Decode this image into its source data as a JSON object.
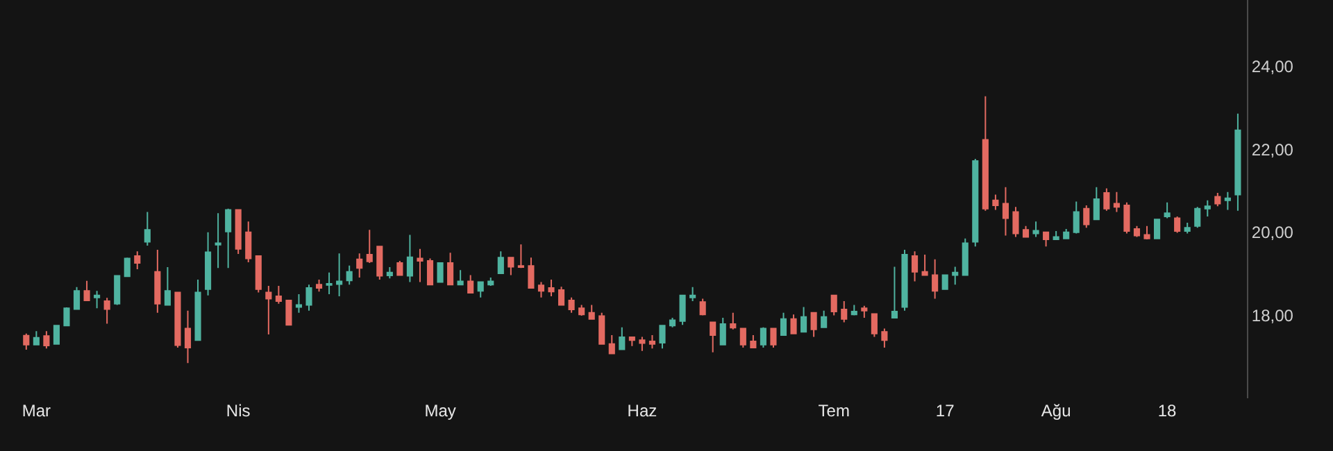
{
  "chart_data": {
    "type": "candlestick",
    "categories": [
      null,
      "Mar",
      null,
      null,
      null,
      null,
      null,
      null,
      null,
      null,
      null,
      null,
      null,
      null,
      null,
      null,
      null,
      null,
      null,
      null,
      null,
      "Nis",
      null,
      null,
      null,
      null,
      null,
      null,
      null,
      null,
      null,
      null,
      null,
      null,
      null,
      null,
      null,
      null,
      null,
      null,
      null,
      "May",
      null,
      null,
      null,
      null,
      null,
      null,
      null,
      null,
      null,
      null,
      null,
      null,
      null,
      null,
      null,
      null,
      null,
      null,
      null,
      "Haz",
      null,
      null,
      null,
      null,
      null,
      null,
      null,
      null,
      null,
      null,
      null,
      null,
      null,
      null,
      null,
      null,
      null,
      null,
      "Tem",
      null,
      null,
      null,
      null,
      null,
      null,
      null,
      null,
      null,
      null,
      "17",
      null,
      null,
      null,
      null,
      null,
      null,
      null,
      null,
      null,
      null,
      "Ağu",
      null,
      null,
      null,
      null,
      null,
      null,
      null,
      null,
      null,
      null,
      "18",
      null,
      null,
      null,
      null,
      null,
      null,
      null
    ],
    "ohlc": [
      [
        17.51,
        17.56,
        17.17,
        17.29
      ],
      [
        17.29,
        17.62,
        17.29,
        17.46
      ],
      [
        17.5,
        17.62,
        17.2,
        17.27
      ],
      [
        17.31,
        17.77,
        17.31,
        17.75
      ],
      [
        17.75,
        18.19,
        17.75,
        18.17
      ],
      [
        18.15,
        18.68,
        18.15,
        18.59
      ],
      [
        18.59,
        18.83,
        18.36,
        18.36
      ],
      [
        18.43,
        18.59,
        18.17,
        18.48
      ],
      [
        18.34,
        18.42,
        17.8,
        18.15
      ],
      [
        18.28,
        18.97,
        18.25,
        18.95
      ],
      [
        18.94,
        19.39,
        18.94,
        19.37
      ],
      [
        19.43,
        19.54,
        19.11,
        19.26
      ],
      [
        19.77,
        20.49,
        19.68,
        20.06
      ],
      [
        19.05,
        19.58,
        18.06,
        18.28
      ],
      [
        18.25,
        19.16,
        18.25,
        18.59
      ],
      [
        18.55,
        18.55,
        17.22,
        17.28
      ],
      [
        17.68,
        18.11,
        16.85,
        17.22
      ],
      [
        17.4,
        18.86,
        17.4,
        18.55
      ],
      [
        18.63,
        20.0,
        18.48,
        19.52
      ],
      [
        19.7,
        20.46,
        19.14,
        19.74
      ],
      [
        20.02,
        20.57,
        19.14,
        20.54
      ],
      [
        20.54,
        20.54,
        19.48,
        19.6
      ],
      [
        20.0,
        20.26,
        19.28,
        19.37
      ],
      [
        19.43,
        19.43,
        18.55,
        18.63
      ],
      [
        18.55,
        18.71,
        17.54,
        18.4
      ],
      [
        18.46,
        18.71,
        18.28,
        18.34
      ],
      [
        18.36,
        18.36,
        17.77,
        17.77
      ],
      [
        18.2,
        18.51,
        18.06,
        18.25
      ],
      [
        18.25,
        18.74,
        18.11,
        18.66
      ],
      [
        18.74,
        18.86,
        18.57,
        18.66
      ],
      [
        18.73,
        19.03,
        18.51,
        18.76
      ],
      [
        18.75,
        19.49,
        18.46,
        18.82
      ],
      [
        18.84,
        19.2,
        18.74,
        19.05
      ],
      [
        19.35,
        19.49,
        18.91,
        19.14
      ],
      [
        19.46,
        20.06,
        19.26,
        19.3
      ],
      [
        19.66,
        19.66,
        18.86,
        18.95
      ],
      [
        18.96,
        19.16,
        18.89,
        19.03
      ],
      [
        19.26,
        19.31,
        18.97,
        18.97
      ],
      [
        18.95,
        19.94,
        18.8,
        19.4
      ],
      [
        19.37,
        19.6,
        18.8,
        19.31
      ],
      [
        19.31,
        19.37,
        18.74,
        18.74
      ],
      [
        18.8,
        19.26,
        18.8,
        19.26
      ],
      [
        19.26,
        19.51,
        18.74,
        18.74
      ],
      [
        18.74,
        19.09,
        18.74,
        18.82
      ],
      [
        18.82,
        18.97,
        18.54,
        18.54
      ],
      [
        18.59,
        18.8,
        18.43,
        18.8
      ],
      [
        18.74,
        18.91,
        18.71,
        18.82
      ],
      [
        19.01,
        19.54,
        19.01,
        19.39
      ],
      [
        19.39,
        19.39,
        18.97,
        19.17
      ],
      [
        19.19,
        19.71,
        19.14,
        19.16
      ],
      [
        19.19,
        19.39,
        18.66,
        18.66
      ],
      [
        18.72,
        18.8,
        18.43,
        18.59
      ],
      [
        18.66,
        18.86,
        18.46,
        18.57
      ],
      [
        18.61,
        18.69,
        18.25,
        18.25
      ],
      [
        18.36,
        18.43,
        18.06,
        18.14
      ],
      [
        18.17,
        18.25,
        17.99,
        18.02
      ],
      [
        18.06,
        18.25,
        17.91,
        17.91
      ],
      [
        17.98,
        18.06,
        17.31,
        17.31
      ],
      [
        17.31,
        17.52,
        17.08,
        17.08
      ],
      [
        17.18,
        17.71,
        17.18,
        17.47
      ],
      [
        17.47,
        17.47,
        17.26,
        17.4
      ],
      [
        17.4,
        17.48,
        17.14,
        17.33
      ],
      [
        17.37,
        17.52,
        17.2,
        17.31
      ],
      [
        17.34,
        17.77,
        17.2,
        17.75
      ],
      [
        17.75,
        17.94,
        17.71,
        17.88
      ],
      [
        17.86,
        18.48,
        17.77,
        18.48
      ],
      [
        18.43,
        18.68,
        18.34,
        18.48
      ],
      [
        18.32,
        18.4,
        18.0,
        18.02
      ],
      [
        17.83,
        17.83,
        17.11,
        17.52
      ],
      [
        17.29,
        17.94,
        17.29,
        17.79
      ],
      [
        17.79,
        18.06,
        17.66,
        17.7
      ],
      [
        17.68,
        17.68,
        17.22,
        17.29
      ],
      [
        17.37,
        17.52,
        17.22,
        17.22
      ],
      [
        17.29,
        17.71,
        17.22,
        17.68
      ],
      [
        17.68,
        17.68,
        17.22,
        17.29
      ],
      [
        17.52,
        18.06,
        17.52,
        17.91
      ],
      [
        17.91,
        18.02,
        17.56,
        17.56
      ],
      [
        17.6,
        18.2,
        17.6,
        17.96
      ],
      [
        18.06,
        18.06,
        17.48,
        17.66
      ],
      [
        17.71,
        18.11,
        17.71,
        17.96
      ],
      [
        18.48,
        18.48,
        18.0,
        18.09
      ],
      [
        18.14,
        18.34,
        17.83,
        17.91
      ],
      [
        18.02,
        18.25,
        18.0,
        18.09
      ],
      [
        18.17,
        18.23,
        17.94,
        18.11
      ],
      [
        18.03,
        18.03,
        17.48,
        17.56
      ],
      [
        17.6,
        17.68,
        17.22,
        17.4
      ],
      [
        17.94,
        19.17,
        17.94,
        18.09
      ],
      [
        18.2,
        19.58,
        18.11,
        19.46
      ],
      [
        19.43,
        19.54,
        18.82,
        19.05
      ],
      [
        19.05,
        19.46,
        18.97,
        18.97
      ],
      [
        18.97,
        19.35,
        18.4,
        18.59
      ],
      [
        18.63,
        18.97,
        18.63,
        18.97
      ],
      [
        18.97,
        19.17,
        18.74,
        19.03
      ],
      [
        18.97,
        19.85,
        18.97,
        19.74
      ],
      [
        19.77,
        21.77,
        19.66,
        21.72
      ],
      [
        22.23,
        23.28,
        20.52,
        20.57
      ],
      [
        20.77,
        20.91,
        20.54,
        20.65
      ],
      [
        20.69,
        21.09,
        19.92,
        20.34
      ],
      [
        20.49,
        20.61,
        19.89,
        19.97
      ],
      [
        20.06,
        20.15,
        19.89,
        19.89
      ],
      [
        19.97,
        20.26,
        19.89,
        20.04
      ],
      [
        20.0,
        20.0,
        19.66,
        19.83
      ],
      [
        19.83,
        20.03,
        19.83,
        19.89
      ],
      [
        19.85,
        20.08,
        19.85,
        20.0
      ],
      [
        20.0,
        20.74,
        19.97,
        20.49
      ],
      [
        20.57,
        20.65,
        20.11,
        20.19
      ],
      [
        20.31,
        21.09,
        20.31,
        20.8
      ],
      [
        20.95,
        21.06,
        20.52,
        20.57
      ],
      [
        20.69,
        20.97,
        20.49,
        20.61
      ],
      [
        20.65,
        20.72,
        19.97,
        20.03
      ],
      [
        20.08,
        20.15,
        19.89,
        19.92
      ],
      [
        19.94,
        20.15,
        19.83,
        19.85
      ],
      [
        19.85,
        20.31,
        19.85,
        20.31
      ],
      [
        20.38,
        20.72,
        20.34,
        20.46
      ],
      [
        20.34,
        20.38,
        19.99,
        20.03
      ],
      [
        20.03,
        20.23,
        19.97,
        20.11
      ],
      [
        20.15,
        20.61,
        20.11,
        20.57
      ],
      [
        20.57,
        20.77,
        20.38,
        20.63
      ],
      [
        20.86,
        20.95,
        20.63,
        20.69
      ],
      [
        20.77,
        20.97,
        20.54,
        20.82
      ],
      [
        20.91,
        22.86,
        20.52,
        22.46
      ]
    ],
    "colors": [
      "#e36a61",
      "#4fb3a0",
      "#e36a61",
      "#4fb3a0",
      "#4fb3a0",
      "#4fb3a0",
      "#e36a61",
      "#4fb3a0",
      "#e36a61",
      "#4fb3a0",
      "#4fb3a0",
      "#e36a61",
      "#4fb3a0",
      "#e36a61",
      "#4fb3a0",
      "#e36a61",
      "#e36a61",
      "#4fb3a0",
      "#4fb3a0",
      "#4fb3a0",
      "#4fb3a0",
      "#e36a61",
      "#e36a61",
      "#e36a61",
      "#e36a61",
      "#e36a61",
      "#e36a61",
      "#4fb3a0",
      "#4fb3a0",
      "#e36a61",
      "#4fb3a0",
      "#4fb3a0",
      "#4fb3a0",
      "#e36a61",
      "#e36a61",
      "#e36a61",
      "#4fb3a0",
      "#e36a61",
      "#4fb3a0",
      "#e36a61",
      "#e36a61",
      "#4fb3a0",
      "#e36a61",
      "#4fb3a0",
      "#e36a61",
      "#4fb3a0",
      "#4fb3a0",
      "#4fb3a0",
      "#e36a61",
      "#e36a61",
      "#e36a61",
      "#e36a61",
      "#e36a61",
      "#e36a61",
      "#e36a61",
      "#e36a61",
      "#e36a61",
      "#e36a61",
      "#e36a61",
      "#4fb3a0",
      "#e36a61",
      "#e36a61",
      "#e36a61",
      "#4fb3a0",
      "#4fb3a0",
      "#4fb3a0",
      "#4fb3a0",
      "#e36a61",
      "#e36a61",
      "#4fb3a0",
      "#e36a61",
      "#e36a61",
      "#e36a61",
      "#4fb3a0",
      "#e36a61",
      "#4fb3a0",
      "#e36a61",
      "#4fb3a0",
      "#e36a61",
      "#4fb3a0",
      "#e36a61",
      "#e36a61",
      "#4fb3a0",
      "#e36a61",
      "#e36a61",
      "#e36a61",
      "#4fb3a0",
      "#4fb3a0",
      "#e36a61",
      "#e36a61",
      "#e36a61",
      "#4fb3a0",
      "#4fb3a0",
      "#4fb3a0",
      "#4fb3a0",
      "#e36a61",
      "#e36a61",
      "#e36a61",
      "#e36a61",
      "#e36a61",
      "#4fb3a0",
      "#e36a61",
      "#4fb3a0",
      "#4fb3a0",
      "#4fb3a0",
      "#e36a61",
      "#4fb3a0",
      "#e36a61",
      "#e36a61",
      "#e36a61",
      "#e36a61",
      "#e36a61",
      "#4fb3a0",
      "#4fb3a0",
      "#e36a61",
      "#4fb3a0",
      "#4fb3a0",
      "#4fb3a0",
      "#e36a61",
      "#4fb3a0",
      "#4fb3a0"
    ],
    "ylim": [
      16.0,
      25.6
    ],
    "yticks": [
      {
        "value": 18,
        "label": "18,00"
      },
      {
        "value": 20,
        "label": "20,00"
      },
      {
        "value": 22,
        "label": "22,00"
      },
      {
        "value": 24,
        "label": "24,00"
      }
    ]
  }
}
